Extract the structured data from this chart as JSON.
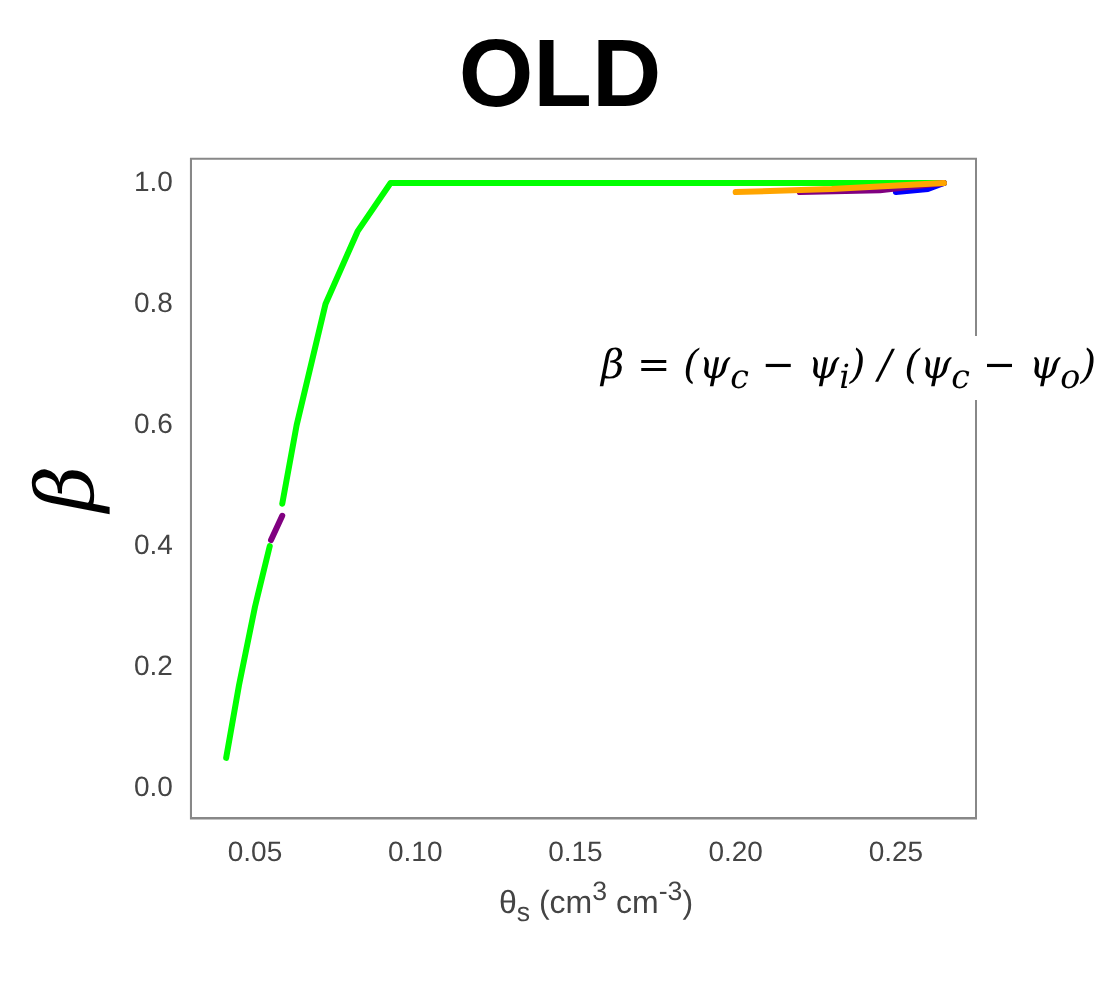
{
  "chart_data": {
    "type": "line",
    "title": "OLD",
    "xlabel": "θ$_{s}$ (cm$^{3}$ cm$^{-3}$)",
    "ylabel": "β",
    "annotations": [
      "β = (ψ$_{c}$ − ψ$_{i}$) / (ψ$_{c}$ − ψ$_{o}$)"
    ],
    "xlim": [
      0.03,
      0.275
    ],
    "ylim": [
      -0.05,
      1.04
    ],
    "xticks": [
      0.05,
      {
        "value": 0.1,
        "label": "0.10"
      },
      0.15,
      {
        "value": 0.2,
        "label": "0.20"
      },
      0.25
    ],
    "yticks": [
      {
        "value": 0,
        "label": "0.0"
      },
      0.2,
      0.4,
      0.6,
      0.8,
      {
        "value": 1,
        "label": "1.0"
      }
    ],
    "grid": false,
    "marker": "none",
    "line_style": "solid",
    "series": [
      {
        "color": "#ffa500",
        "x": [
          0.2,
          0.23,
          0.265
        ],
        "values": [
          0.985,
          0.99,
          1.0
        ]
      },
      {
        "color": "#800080",
        "x": [
          0.22,
          0.245,
          0.265
        ],
        "values": [
          0.985,
          0.988,
          1.0
        ]
      },
      {
        "color": "#800080",
        "x": [
          0.055,
          0.0585
        ],
        "values": [
          0.41,
          0.45
        ]
      },
      {
        "color": "#0000ff",
        "x": [
          0.25,
          0.26,
          0.265
        ],
        "values": [
          0.985,
          0.99,
          1.0
        ]
      },
      {
        "color": "#00ff00",
        "x": [
          0.041,
          0.045,
          0.05,
          0.0546
        ],
        "values": [
          0.05,
          0.17,
          0.3,
          0.4
        ]
      },
      {
        "color": "#00ff00",
        "x": [
          0.0585,
          0.063,
          0.072,
          0.082,
          0.0923,
          0.265
        ],
        "values": [
          0.47,
          0.6,
          0.8,
          0.92,
          1.0,
          1.0
        ]
      }
    ]
  }
}
